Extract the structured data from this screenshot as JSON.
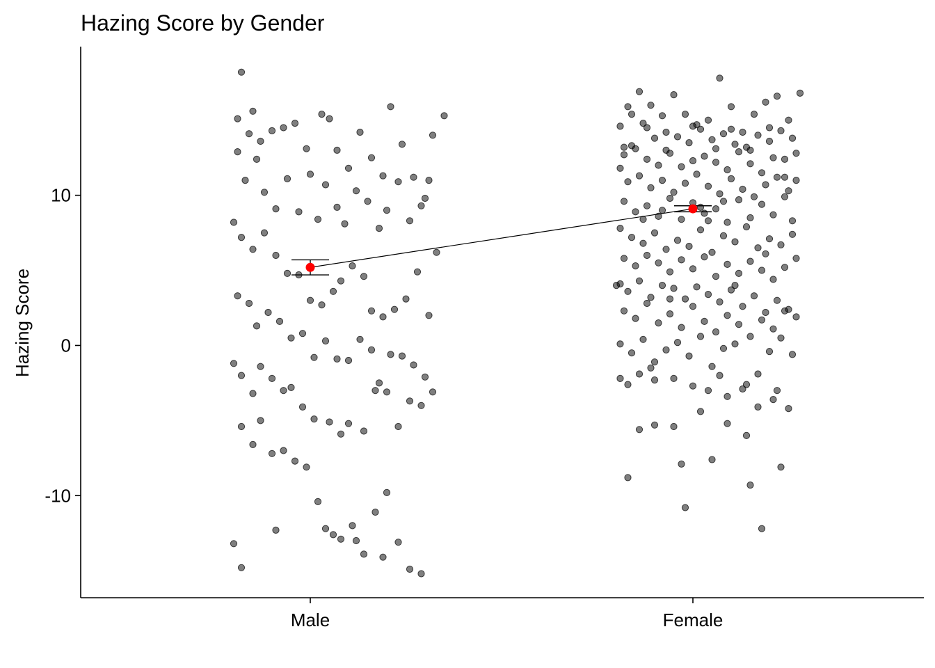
{
  "chart_data": {
    "type": "scatter",
    "title": "Hazing Score by Gender",
    "xlabel": "",
    "ylabel": "Hazing Score",
    "categories": [
      "Male",
      "Female"
    ],
    "ylim": [
      -16.8,
      19.9
    ],
    "y_ticks": [
      -10,
      0,
      10
    ],
    "grid": false,
    "legend": "none",
    "colors": {
      "points": "#000000",
      "mean": "#ff0000",
      "line": "#000000"
    },
    "summary": [
      {
        "category": "Male",
        "mean": 5.2,
        "ci_low": 4.7,
        "ci_high": 5.7
      },
      {
        "category": "Female",
        "mean": 9.1,
        "ci_low": 8.9,
        "ci_high": 9.3
      }
    ],
    "jitter_points": {
      "Male": [
        [
          -0.18,
          18.2
        ],
        [
          -0.15,
          15.6
        ],
        [
          -0.19,
          15.1
        ],
        [
          -0.16,
          14.1
        ],
        [
          -0.13,
          13.6
        ],
        [
          -0.1,
          14.3
        ],
        [
          -0.07,
          14.5
        ],
        [
          -0.04,
          14.8
        ],
        [
          -0.01,
          13.1
        ],
        [
          0.03,
          15.4
        ],
        [
          0.05,
          15.1
        ],
        [
          0.07,
          13.0
        ],
        [
          0.1,
          11.8
        ],
        [
          0.13,
          14.2
        ],
        [
          0.16,
          12.5
        ],
        [
          0.19,
          11.3
        ],
        [
          0.21,
          15.9
        ],
        [
          0.24,
          13.4
        ],
        [
          0.27,
          11.2
        ],
        [
          0.3,
          9.8
        ],
        [
          0.32,
          14.0
        ],
        [
          0.35,
          15.3
        ],
        [
          -0.19,
          12.9
        ],
        [
          -0.17,
          11.0
        ],
        [
          -0.14,
          12.4
        ],
        [
          -0.12,
          10.2
        ],
        [
          -0.09,
          9.1
        ],
        [
          -0.06,
          11.1
        ],
        [
          -0.03,
          8.9
        ],
        [
          0.0,
          11.4
        ],
        [
          0.02,
          8.4
        ],
        [
          0.04,
          10.7
        ],
        [
          0.07,
          9.2
        ],
        [
          0.09,
          8.1
        ],
        [
          0.12,
          10.3
        ],
        [
          0.15,
          9.6
        ],
        [
          0.18,
          7.8
        ],
        [
          0.2,
          9.0
        ],
        [
          0.23,
          10.9
        ],
        [
          0.26,
          8.3
        ],
        [
          0.29,
          9.3
        ],
        [
          0.31,
          11.0
        ],
        [
          -0.2,
          8.2
        ],
        [
          -0.18,
          7.2
        ],
        [
          -0.15,
          6.4
        ],
        [
          -0.12,
          7.5
        ],
        [
          -0.09,
          6.0
        ],
        [
          -0.06,
          4.8
        ],
        [
          -0.03,
          4.7
        ],
        [
          0.0,
          3.0
        ],
        [
          0.03,
          2.7
        ],
        [
          0.06,
          3.6
        ],
        [
          0.08,
          4.3
        ],
        [
          0.11,
          5.3
        ],
        [
          0.14,
          4.6
        ],
        [
          0.16,
          2.3
        ],
        [
          0.19,
          1.9
        ],
        [
          0.22,
          2.4
        ],
        [
          0.25,
          3.1
        ],
        [
          0.28,
          4.9
        ],
        [
          0.31,
          2.0
        ],
        [
          0.33,
          6.2
        ],
        [
          -0.19,
          3.3
        ],
        [
          -0.16,
          2.8
        ],
        [
          -0.14,
          1.3
        ],
        [
          -0.11,
          2.2
        ],
        [
          -0.08,
          1.6
        ],
        [
          -0.05,
          0.5
        ],
        [
          -0.02,
          0.8
        ],
        [
          0.01,
          -0.8
        ],
        [
          0.04,
          0.3
        ],
        [
          0.07,
          -0.9
        ],
        [
          0.1,
          -1.0
        ],
        [
          0.13,
          0.4
        ],
        [
          0.16,
          -0.3
        ],
        [
          0.18,
          -2.5
        ],
        [
          0.21,
          -0.6
        ],
        [
          0.24,
          -0.7
        ],
        [
          0.27,
          -1.3
        ],
        [
          0.3,
          -2.1
        ],
        [
          0.32,
          -3.1
        ],
        [
          -0.2,
          -1.2
        ],
        [
          -0.18,
          -2.0
        ],
        [
          -0.15,
          -3.2
        ],
        [
          -0.13,
          -1.4
        ],
        [
          -0.1,
          -2.2
        ],
        [
          -0.07,
          -3.0
        ],
        [
          -0.05,
          -2.8
        ],
        [
          -0.02,
          -4.1
        ],
        [
          0.01,
          -4.9
        ],
        [
          0.05,
          -5.1
        ],
        [
          0.08,
          -5.9
        ],
        [
          0.1,
          -5.2
        ],
        [
          0.14,
          -5.7
        ],
        [
          0.17,
          -3.0
        ],
        [
          0.2,
          -3.1
        ],
        [
          0.23,
          -5.4
        ],
        [
          0.26,
          -3.7
        ],
        [
          0.29,
          -4.0
        ],
        [
          -0.18,
          -5.4
        ],
        [
          -0.15,
          -6.6
        ],
        [
          -0.13,
          -5.0
        ],
        [
          -0.1,
          -7.2
        ],
        [
          -0.07,
          -7.0
        ],
        [
          -0.04,
          -7.7
        ],
        [
          -0.01,
          -8.1
        ],
        [
          0.02,
          -10.4
        ],
        [
          0.04,
          -12.2
        ],
        [
          0.08,
          -12.9
        ],
        [
          0.11,
          -12.0
        ],
        [
          0.14,
          -13.9
        ],
        [
          0.17,
          -11.1
        ],
        [
          0.2,
          -9.8
        ],
        [
          0.23,
          -13.1
        ],
        [
          0.26,
          -14.9
        ],
        [
          0.29,
          -15.2
        ],
        [
          -0.2,
          -13.2
        ],
        [
          -0.18,
          -14.8
        ],
        [
          -0.09,
          -12.3
        ],
        [
          0.06,
          -12.6
        ],
        [
          0.12,
          -13.0
        ],
        [
          0.19,
          -14.1
        ]
      ],
      "Female": [
        [
          -0.17,
          15.9
        ],
        [
          -0.14,
          16.9
        ],
        [
          -0.11,
          16.0
        ],
        [
          -0.08,
          15.3
        ],
        [
          -0.05,
          16.7
        ],
        [
          -0.02,
          15.4
        ],
        [
          0.01,
          14.7
        ],
        [
          0.04,
          15.0
        ],
        [
          0.07,
          17.8
        ],
        [
          0.1,
          15.9
        ],
        [
          0.13,
          14.2
        ],
        [
          0.16,
          15.4
        ],
        [
          0.19,
          16.2
        ],
        [
          0.22,
          16.6
        ],
        [
          0.25,
          15.0
        ],
        [
          0.28,
          16.8
        ],
        [
          -0.19,
          14.6
        ],
        [
          -0.16,
          13.3
        ],
        [
          -0.13,
          14.8
        ],
        [
          -0.1,
          13.8
        ],
        [
          -0.07,
          14.2
        ],
        [
          -0.04,
          13.9
        ],
        [
          -0.01,
          13.5
        ],
        [
          0.02,
          14.4
        ],
        [
          0.05,
          13.7
        ],
        [
          0.08,
          14.1
        ],
        [
          0.11,
          13.4
        ],
        [
          0.14,
          13.2
        ],
        [
          0.17,
          14.0
        ],
        [
          0.2,
          13.6
        ],
        [
          0.23,
          14.3
        ],
        [
          0.26,
          13.8
        ],
        [
          -0.18,
          12.7
        ],
        [
          -0.15,
          13.1
        ],
        [
          -0.12,
          12.4
        ],
        [
          -0.09,
          12.0
        ],
        [
          -0.06,
          12.8
        ],
        [
          -0.03,
          11.9
        ],
        [
          0.0,
          12.3
        ],
        [
          0.03,
          12.6
        ],
        [
          0.06,
          12.2
        ],
        [
          0.09,
          11.7
        ],
        [
          0.12,
          12.9
        ],
        [
          0.15,
          12.1
        ],
        [
          0.18,
          11.5
        ],
        [
          0.21,
          12.5
        ],
        [
          0.24,
          11.2
        ],
        [
          0.27,
          12.8
        ],
        [
          -0.19,
          11.8
        ],
        [
          -0.17,
          10.9
        ],
        [
          -0.14,
          11.3
        ],
        [
          -0.11,
          10.5
        ],
        [
          -0.08,
          11.0
        ],
        [
          -0.05,
          10.2
        ],
        [
          -0.02,
          10.8
        ],
        [
          0.01,
          11.4
        ],
        [
          0.04,
          10.6
        ],
        [
          0.07,
          10.1
        ],
        [
          0.1,
          11.1
        ],
        [
          0.13,
          10.4
        ],
        [
          0.16,
          9.9
        ],
        [
          0.19,
          10.7
        ],
        [
          0.22,
          11.2
        ],
        [
          0.25,
          10.3
        ],
        [
          0.27,
          11.0
        ],
        [
          -0.18,
          9.6
        ],
        [
          -0.15,
          8.9
        ],
        [
          -0.12,
          9.3
        ],
        [
          -0.09,
          8.6
        ],
        [
          -0.06,
          9.8
        ],
        [
          -0.03,
          8.4
        ],
        [
          0.0,
          9.5
        ],
        [
          0.03,
          8.8
        ],
        [
          0.06,
          9.1
        ],
        [
          0.09,
          8.2
        ],
        [
          0.12,
          9.7
        ],
        [
          0.15,
          8.5
        ],
        [
          0.18,
          9.4
        ],
        [
          0.21,
          8.7
        ],
        [
          0.24,
          9.9
        ],
        [
          0.26,
          8.3
        ],
        [
          -0.19,
          7.8
        ],
        [
          -0.16,
          7.2
        ],
        [
          -0.13,
          6.8
        ],
        [
          -0.1,
          7.5
        ],
        [
          -0.07,
          6.4
        ],
        [
          -0.04,
          7.0
        ],
        [
          -0.01,
          6.6
        ],
        [
          0.02,
          7.7
        ],
        [
          0.05,
          6.2
        ],
        [
          0.08,
          7.3
        ],
        [
          0.11,
          6.9
        ],
        [
          0.14,
          7.9
        ],
        [
          0.17,
          6.5
        ],
        [
          0.2,
          7.1
        ],
        [
          0.23,
          6.7
        ],
        [
          0.26,
          7.4
        ],
        [
          -0.18,
          5.8
        ],
        [
          -0.15,
          5.3
        ],
        [
          -0.12,
          6.0
        ],
        [
          -0.09,
          5.5
        ],
        [
          -0.06,
          4.9
        ],
        [
          -0.03,
          5.7
        ],
        [
          0.0,
          5.1
        ],
        [
          0.03,
          5.9
        ],
        [
          0.06,
          4.6
        ],
        [
          0.09,
          5.4
        ],
        [
          0.12,
          4.8
        ],
        [
          0.15,
          5.6
        ],
        [
          0.18,
          5.0
        ],
        [
          0.21,
          4.4
        ],
        [
          0.24,
          5.2
        ],
        [
          0.27,
          5.8
        ],
        [
          -0.19,
          4.1
        ],
        [
          -0.17,
          3.6
        ],
        [
          -0.14,
          4.3
        ],
        [
          -0.11,
          3.2
        ],
        [
          -0.08,
          4.0
        ],
        [
          -0.05,
          3.8
        ],
        [
          -0.02,
          3.1
        ],
        [
          0.01,
          3.9
        ],
        [
          0.04,
          3.4
        ],
        [
          0.07,
          2.9
        ],
        [
          0.1,
          3.7
        ],
        [
          0.13,
          2.6
        ],
        [
          0.16,
          3.3
        ],
        [
          0.19,
          2.2
        ],
        [
          0.22,
          3.0
        ],
        [
          0.25,
          2.4
        ],
        [
          0.27,
          1.9
        ],
        [
          -0.18,
          2.3
        ],
        [
          -0.15,
          1.8
        ],
        [
          -0.12,
          2.8
        ],
        [
          -0.09,
          1.5
        ],
        [
          -0.06,
          2.1
        ],
        [
          -0.03,
          1.2
        ],
        [
          0.0,
          2.6
        ],
        [
          0.03,
          1.6
        ],
        [
          0.06,
          0.9
        ],
        [
          0.09,
          2.0
        ],
        [
          0.12,
          1.4
        ],
        [
          0.15,
          0.6
        ],
        [
          0.18,
          1.7
        ],
        [
          0.21,
          1.1
        ],
        [
          0.24,
          2.3
        ],
        [
          -0.19,
          0.1
        ],
        [
          -0.16,
          -0.5
        ],
        [
          -0.13,
          0.4
        ],
        [
          -0.1,
          -1.1
        ],
        [
          -0.07,
          -0.3
        ],
        [
          -0.04,
          0.2
        ],
        [
          -0.01,
          -0.7
        ],
        [
          0.02,
          0.6
        ],
        [
          0.05,
          -1.4
        ],
        [
          0.08,
          -0.2
        ],
        [
          0.11,
          0.1
        ],
        [
          0.14,
          -2.6
        ],
        [
          0.17,
          -1.9
        ],
        [
          0.2,
          -0.4
        ],
        [
          0.23,
          0.5
        ],
        [
          0.26,
          -0.6
        ],
        [
          -0.19,
          -2.2
        ],
        [
          -0.17,
          -2.6
        ],
        [
          -0.14,
          -1.9
        ],
        [
          -0.1,
          -2.3
        ],
        [
          -0.05,
          -2.2
        ],
        [
          0.0,
          -2.7
        ],
        [
          0.04,
          -3.0
        ],
        [
          0.09,
          -3.4
        ],
        [
          0.13,
          -2.9
        ],
        [
          0.17,
          -4.1
        ],
        [
          0.21,
          -3.6
        ],
        [
          0.25,
          -4.2
        ],
        [
          -0.14,
          -5.6
        ],
        [
          -0.1,
          -5.3
        ],
        [
          -0.05,
          -5.4
        ],
        [
          0.02,
          -4.4
        ],
        [
          0.09,
          -5.2
        ],
        [
          0.14,
          -6.0
        ],
        [
          -0.17,
          -8.8
        ],
        [
          -0.03,
          -7.9
        ],
        [
          0.05,
          -7.6
        ],
        [
          0.15,
          -9.3
        ],
        [
          0.23,
          -8.1
        ],
        [
          -0.02,
          -10.8
        ],
        [
          0.18,
          -12.2
        ],
        [
          -0.2,
          4.0
        ],
        [
          -0.18,
          13.2
        ],
        [
          -0.16,
          15.4
        ],
        [
          -0.12,
          14.5
        ],
        [
          -0.07,
          13.0
        ],
        [
          0.0,
          14.6
        ],
        [
          0.06,
          13.1
        ],
        [
          0.1,
          14.4
        ],
        [
          0.15,
          13.0
        ],
        [
          0.2,
          14.5
        ],
        [
          0.24,
          12.4
        ],
        [
          -0.08,
          9.0
        ],
        [
          0.02,
          9.2
        ],
        [
          0.08,
          9.6
        ],
        [
          -0.13,
          8.4
        ],
        [
          0.04,
          8.3
        ],
        [
          -0.06,
          3.1
        ],
        [
          0.11,
          4.0
        ],
        [
          0.19,
          6.1
        ],
        [
          -0.11,
          -1.5
        ],
        [
          0.07,
          -2.0
        ],
        [
          0.22,
          -3.0
        ]
      ]
    }
  }
}
